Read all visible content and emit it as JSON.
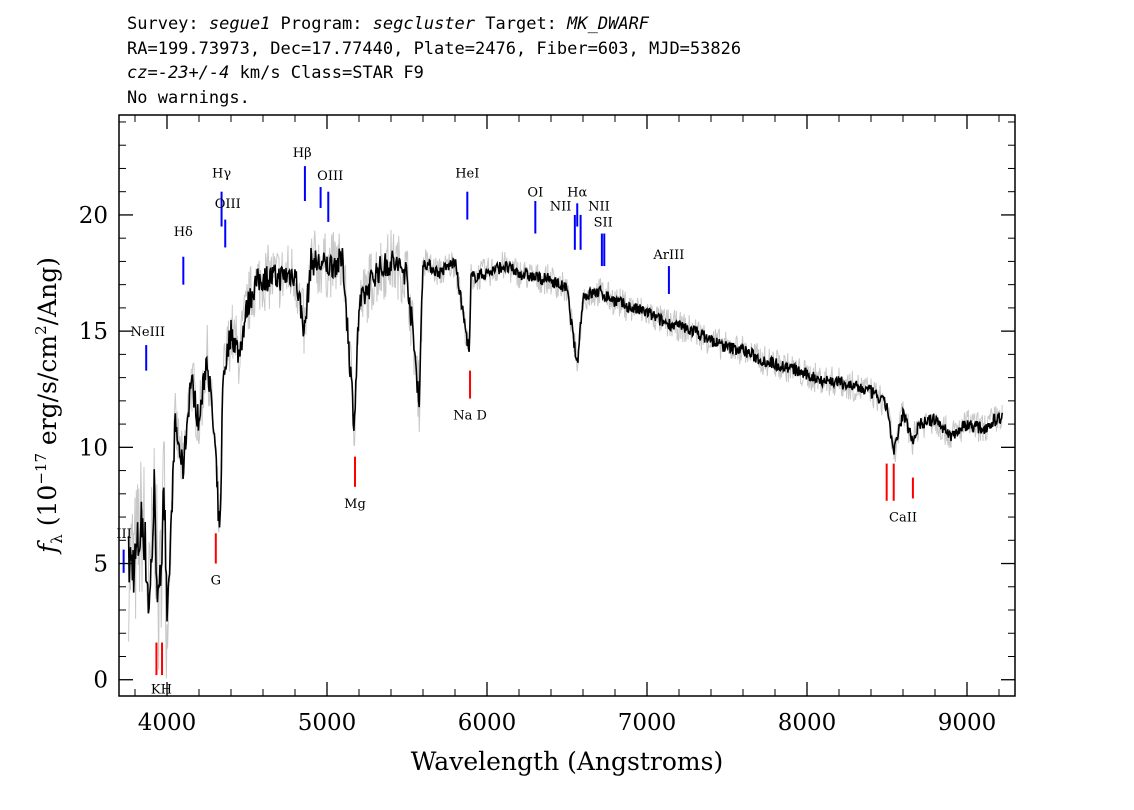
{
  "header": {
    "survey_label": "Survey: ",
    "survey_value": "segue1",
    "program_label": " Program: ",
    "program_value": "segcluster",
    "target_label": " Target: ",
    "target_value": "MK_DWARF",
    "line2": "RA=199.73973, Dec=17.77440, Plate=2476, Fiber=603, MJD=53826",
    "cz_label": "cz",
    "cz_eq": "=",
    "cz_value": "-23+/-4",
    "cz_rest": " km/s Class=STAR F9",
    "line4": "No warnings."
  },
  "chart_data": {
    "type": "line",
    "title": "",
    "xlabel": "Wavelength (Angstroms)",
    "ylabel": "f_λ (10^-17 erg/s/cm^2/Ang)",
    "xlim": [
      3700,
      9300
    ],
    "ylim": [
      -0.7,
      24.3
    ],
    "x_ticks": [
      4000,
      5000,
      6000,
      7000,
      8000,
      9000
    ],
    "x_tick_labels": [
      "4000",
      "5000",
      "6000",
      "7000",
      "8000",
      "9000"
    ],
    "y_ticks": [
      0,
      5,
      10,
      15,
      20
    ],
    "y_tick_labels": [
      "0",
      "5",
      "10",
      "15",
      "20"
    ],
    "series": [
      {
        "color": "#000000",
        "x": [
          3800,
          3850,
          3890,
          3920,
          3950,
          3980,
          4000,
          4050,
          4100,
          4150,
          4200,
          4250,
          4300,
          4330,
          4350,
          4400,
          4450,
          4500,
          4550,
          4600,
          4700,
          4800,
          4860,
          4900,
          5000,
          5100,
          5170,
          5200,
          5300,
          5400,
          5500,
          5577,
          5600,
          5700,
          5800,
          5890,
          5900,
          6000,
          6100,
          6200,
          6300,
          6400,
          6500,
          6563,
          6600,
          6700,
          6800,
          6900,
          7000,
          7100,
          7200,
          7300,
          7400,
          7500,
          7600,
          7700,
          7800,
          7900,
          8000,
          8100,
          8200,
          8300,
          8400,
          8500,
          8542,
          8600,
          8662,
          8700,
          8800,
          8900,
          9000,
          9100,
          9200
        ],
        "y": [
          5,
          7,
          3,
          8,
          2.5,
          9,
          2,
          11,
          9,
          13,
          11,
          14,
          10,
          6,
          13,
          15,
          14,
          16,
          17,
          17.3,
          17.3,
          17.5,
          15,
          18,
          17.8,
          18,
          11,
          16,
          17.5,
          18,
          17.5,
          12,
          18,
          17.5,
          18,
          14,
          17.3,
          17.5,
          17.8,
          17.5,
          17.3,
          17.2,
          16.8,
          13.5,
          16.5,
          16.7,
          16.3,
          16,
          15.8,
          15.4,
          15.2,
          15,
          14.6,
          14.3,
          14.2,
          13.8,
          13.6,
          13.4,
          13.1,
          12.9,
          12.8,
          12.6,
          12.4,
          11.8,
          9.7,
          11.5,
          10.3,
          11,
          11.2,
          10.5,
          11,
          10.8,
          11.3
        ]
      }
    ],
    "error_band_color": "#c8c8c8",
    "emission_lines": [
      {
        "name": "Hδ",
        "wave": 4102,
        "y1": 17,
        "y2": 18.2
      },
      {
        "name": "Hγ",
        "wave": 4341,
        "y1": 19.5,
        "y2": 21
      },
      {
        "name": "OIII",
        "wave": 4364,
        "y1": 18.6,
        "y2": 19.8
      },
      {
        "name": "Hβ",
        "wave": 4862,
        "y1": 20.6,
        "y2": 22.1
      },
      {
        "name": "OIII",
        "wave": 4960,
        "y1": 20.3,
        "y2": 21.2
      },
      {
        "name": "OIII",
        "wave": 5008,
        "y1": 19.7,
        "y2": 21
      },
      {
        "name": "HeI",
        "wave": 5877,
        "y1": 19.8,
        "y2": 21
      },
      {
        "name": "OI",
        "wave": 6302,
        "y1": 19.2,
        "y2": 20.6
      },
      {
        "name": "NII",
        "wave": 6549,
        "y1": 18.5,
        "y2": 20
      },
      {
        "name": "Hα",
        "wave": 6564,
        "y1": 19.5,
        "y2": 20.5
      },
      {
        "name": "NII",
        "wave": 6585,
        "y1": 18.5,
        "y2": 20
      },
      {
        "name": "SII",
        "wave": 6718,
        "y1": 17.8,
        "y2": 19.2
      },
      {
        "name": "SII",
        "wave": 6733,
        "y1": 17.8,
        "y2": 19.2
      },
      {
        "name": "ArIII",
        "wave": 7137,
        "y1": 16.6,
        "y2": 17.8
      },
      {
        "name": "NeIII",
        "wave": 3870,
        "y1": 13.3,
        "y2": 14.4
      },
      {
        "name": "III",
        "wave": 3729,
        "y1": 4.6,
        "y2": 5.6
      }
    ],
    "emission_labels": [
      {
        "text": "Hδ",
        "wave": 4102,
        "y": 19.1
      },
      {
        "text": "Hγ",
        "wave": 4341,
        "y": 21.6
      },
      {
        "text": "OIII",
        "wave": 4380,
        "y": 20.3
      },
      {
        "text": "Hβ",
        "wave": 4845,
        "y": 22.5
      },
      {
        "text": "OIII",
        "wave": 5020,
        "y": 21.5
      },
      {
        "text": "HeI",
        "wave": 5877,
        "y": 21.6
      },
      {
        "text": "OI",
        "wave": 6302,
        "y": 20.8
      },
      {
        "text": "NII",
        "wave": 6460,
        "y": 20.2
      },
      {
        "text": "Hα",
        "wave": 6564,
        "y": 20.8
      },
      {
        "text": "NII",
        "wave": 6700,
        "y": 20.2
      },
      {
        "text": "SII",
        "wave": 6726,
        "y": 19.5
      },
      {
        "text": "ArIII",
        "wave": 7137,
        "y": 18.1
      },
      {
        "text": "NeIII",
        "wave": 3880,
        "y": 14.8
      },
      {
        "text": "III",
        "wave": 3732,
        "y": 6.1
      }
    ],
    "absorption_lines": [
      {
        "name": "K",
        "wave": 3934,
        "y1": 0.2,
        "y2": 1.6
      },
      {
        "name": "H",
        "wave": 3969,
        "y1": 0.2,
        "y2": 1.6
      },
      {
        "name": "G",
        "wave": 4305,
        "y1": 5,
        "y2": 6.3
      },
      {
        "name": "Mg",
        "wave": 5175,
        "y1": 8.3,
        "y2": 9.6
      },
      {
        "name": "Na D",
        "wave": 5894,
        "y1": 12.1,
        "y2": 13.3
      },
      {
        "name": "CaII",
        "wave": 8498,
        "y1": 7.7,
        "y2": 9.3
      },
      {
        "name": "CaII",
        "wave": 8542,
        "y1": 7.7,
        "y2": 9.3
      },
      {
        "name": "CaII",
        "wave": 8662,
        "y1": 7.8,
        "y2": 8.7
      }
    ],
    "absorption_labels": [
      {
        "text": "KH",
        "wave": 3965,
        "y": -0.6
      },
      {
        "text": "G",
        "wave": 4305,
        "y": 4.1
      },
      {
        "text": "Mg",
        "wave": 5175,
        "y": 7.4
      },
      {
        "text": "Na D",
        "wave": 5894,
        "y": 11.2
      },
      {
        "text": "CaII",
        "wave": 8600,
        "y": 6.8
      }
    ]
  }
}
